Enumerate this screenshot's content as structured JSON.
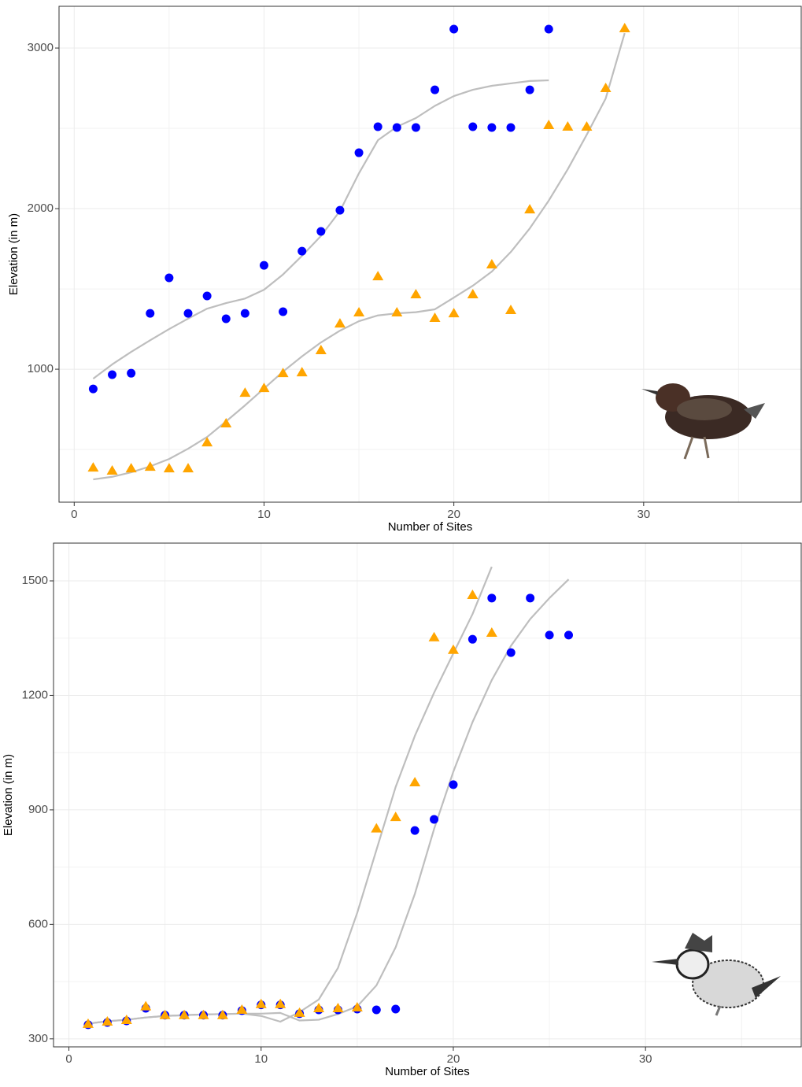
{
  "chart_data": [
    {
      "type": "scatter",
      "x_label": "Number of Sites",
      "y_label": "Elevation (in m)",
      "xlim": [
        -0.8,
        38.3
      ],
      "ylim": [
        172,
        3260
      ],
      "xticks": [
        0,
        10,
        20,
        30
      ],
      "yticks": [
        1000,
        2000,
        3000
      ],
      "minor_xticks": [
        5,
        15,
        25,
        35
      ],
      "minor_yticks": [
        500,
        1500,
        2500
      ],
      "grid": true,
      "series": [
        {
          "color": "#0000ff",
          "marker": "circle",
          "x": [
            1,
            2,
            3,
            4,
            5,
            6,
            7,
            8,
            9,
            10,
            11,
            12,
            13,
            14,
            15,
            16,
            17,
            18,
            19,
            20,
            21,
            22,
            23,
            24,
            25
          ],
          "values": [
            877,
            966,
            975,
            1348,
            1569,
            1348,
            1456,
            1314,
            1348,
            1647,
            1358,
            1735,
            1858,
            1990,
            2348,
            2510,
            2505,
            2505,
            2740,
            3118,
            2510,
            2505,
            2505,
            2740,
            3118
          ]
        },
        {
          "color": "#ffa500",
          "marker": "triangle",
          "x": [
            1,
            2,
            3,
            4,
            5,
            6,
            7,
            8,
            9,
            10,
            11,
            12,
            13,
            14,
            15,
            16,
            17,
            18,
            19,
            20,
            21,
            22,
            23,
            24,
            25,
            26,
            27,
            28,
            29
          ],
          "values": [
            387,
            368,
            382,
            392,
            382,
            382,
            544,
            662,
            853,
            882,
            975,
            980,
            1118,
            1284,
            1353,
            1578,
            1353,
            1466,
            1319,
            1348,
            1466,
            1652,
            1368,
            1995,
            2520,
            2510,
            2510,
            2750,
            3123
          ]
        },
        {
          "color": "#bebebe",
          "marker": "line",
          "x": [
            1,
            2,
            3,
            4,
            5,
            6,
            7,
            8,
            9,
            10,
            11,
            12,
            13,
            14,
            15,
            16,
            17,
            18,
            19,
            20,
            21,
            22,
            23,
            24,
            25
          ],
          "values": [
            941,
            1030,
            1108,
            1180,
            1250,
            1315,
            1377,
            1412,
            1440,
            1495,
            1590,
            1706,
            1830,
            1985,
            2220,
            2426,
            2510,
            2564,
            2640,
            2701,
            2740,
            2765,
            2780,
            2795,
            2799
          ]
        },
        {
          "color": "#bebebe",
          "marker": "line",
          "x": [
            1,
            2,
            3,
            4,
            5,
            6,
            7,
            8,
            9,
            10,
            11,
            12,
            13,
            14,
            15,
            16,
            17,
            18,
            19,
            20,
            21,
            22,
            23,
            24,
            25,
            26,
            27,
            28,
            29
          ],
          "values": [
            314,
            330,
            358,
            395,
            441,
            505,
            578,
            675,
            775,
            880,
            985,
            1080,
            1167,
            1240,
            1299,
            1335,
            1348,
            1355,
            1373,
            1446,
            1520,
            1608,
            1730,
            1877,
            2050,
            2245,
            2460,
            2686,
            3093
          ]
        }
      ]
    },
    {
      "type": "scatter",
      "x_label": "Number of Sites",
      "y_label": "Elevation (in m)",
      "xlim": [
        -0.8,
        38.1
      ],
      "ylim": [
        279,
        1599
      ],
      "xticks": [
        0,
        10,
        20,
        30
      ],
      "yticks": [
        300,
        600,
        900,
        1200,
        1500
      ],
      "minor_xticks": [
        5,
        15,
        25,
        35
      ],
      "minor_yticks": [
        450,
        750,
        1050,
        1350
      ],
      "grid": true,
      "series": [
        {
          "color": "#0000ff",
          "marker": "circle",
          "x": [
            1,
            2,
            3,
            4,
            5,
            6,
            7,
            8,
            9,
            10,
            11,
            12,
            13,
            14,
            15,
            16,
            17,
            18,
            19,
            20,
            21,
            22,
            23,
            24,
            25,
            26
          ],
          "values": [
            337,
            343,
            347,
            380,
            362,
            362,
            362,
            362,
            374,
            389,
            389,
            366,
            376,
            376,
            378,
            376,
            378,
            846,
            875,
            966,
            1347,
            1455,
            1312,
            1455,
            1358,
            1358
          ]
        },
        {
          "color": "#ffa500",
          "marker": "triangle",
          "x": [
            1,
            2,
            3,
            4,
            5,
            6,
            7,
            8,
            9,
            10,
            11,
            12,
            13,
            14,
            15,
            16,
            17,
            18,
            19,
            20,
            21,
            22
          ],
          "values": [
            339,
            345,
            349,
            385,
            362,
            362,
            362,
            362,
            376,
            391,
            391,
            368,
            380,
            380,
            382,
            851,
            881,
            972,
            1352,
            1319,
            1463,
            1364
          ]
        },
        {
          "color": "#bebebe",
          "marker": "line",
          "x": [
            1,
            2,
            3,
            4,
            5,
            6,
            7,
            8,
            9,
            10,
            11,
            12,
            13,
            14,
            15,
            16,
            17,
            18,
            19,
            20,
            21,
            22,
            23,
            24,
            25,
            26
          ],
          "values": [
            340,
            346,
            350,
            356,
            360,
            362,
            364,
            365,
            366,
            366,
            368,
            348,
            350,
            365,
            385,
            440,
            540,
            680,
            850,
            1000,
            1130,
            1240,
            1330,
            1400,
            1455,
            1504
          ]
        },
        {
          "color": "#bebebe",
          "marker": "line",
          "x": [
            1,
            2,
            3,
            4,
            5,
            6,
            7,
            8,
            9,
            10,
            11,
            12,
            13,
            14,
            15,
            16,
            17,
            18,
            19,
            20,
            21,
            22
          ],
          "values": [
            340,
            346,
            350,
            356,
            360,
            362,
            364,
            365,
            366,
            360,
            345,
            370,
            403,
            486,
            630,
            795,
            960,
            1094,
            1207,
            1310,
            1413,
            1537
          ]
        }
      ]
    }
  ]
}
